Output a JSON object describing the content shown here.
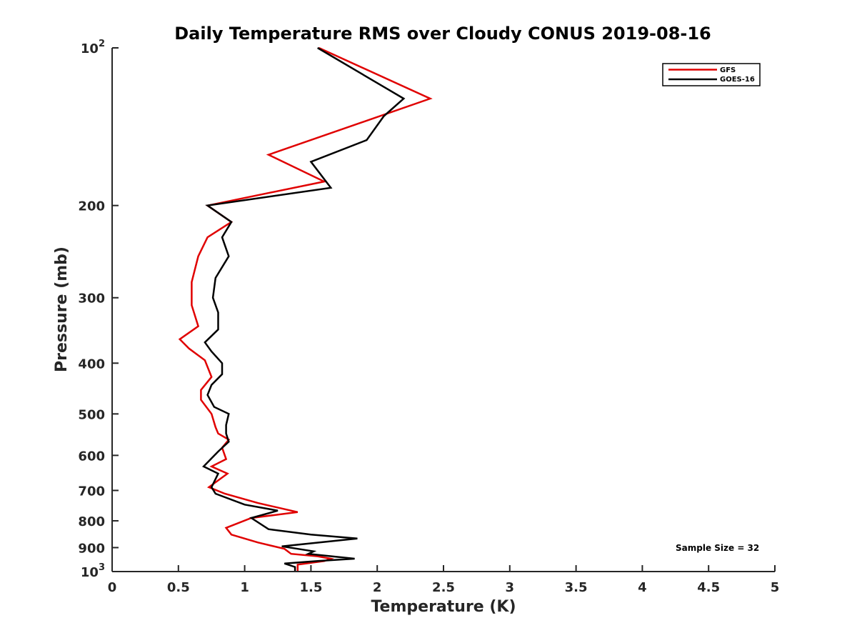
{
  "chart_data": {
    "type": "line",
    "title": "Daily Temperature RMS over Cloudy CONUS 2019-08-16",
    "xlabel": "Temperature (K)",
    "ylabel": "Pressure (mb)",
    "xlim": [
      0,
      5
    ],
    "ylim": [
      100,
      1000
    ],
    "yscale": "log",
    "y_reversed": true,
    "xticks": [
      "0",
      "0.5",
      "1",
      "1.5",
      "2",
      "2.5",
      "3",
      "3.5",
      "4",
      "4.5",
      "5"
    ],
    "yticks": [
      {
        "value": 100,
        "base": "10",
        "exp": "2"
      },
      {
        "value": 200,
        "label": "200"
      },
      {
        "value": 300,
        "label": "300"
      },
      {
        "value": 400,
        "label": "400"
      },
      {
        "value": 500,
        "label": "500"
      },
      {
        "value": 600,
        "label": "600"
      },
      {
        "value": 700,
        "label": "700"
      },
      {
        "value": 800,
        "label": "800"
      },
      {
        "value": 900,
        "label": "900"
      },
      {
        "value": 1000,
        "base": "10",
        "exp": "3"
      }
    ],
    "legend_position": "top-right",
    "annotation": "Sample Size = 32",
    "grid": false,
    "series": [
      {
        "name": "GFS",
        "color": "#e00000",
        "points": [
          [
            1.56,
            100
          ],
          [
            2.4,
            125
          ],
          [
            1.18,
            160
          ],
          [
            1.6,
            180
          ],
          [
            0.72,
            200
          ],
          [
            0.9,
            215
          ],
          [
            0.72,
            230
          ],
          [
            0.65,
            250
          ],
          [
            0.6,
            280
          ],
          [
            0.6,
            310
          ],
          [
            0.65,
            340
          ],
          [
            0.51,
            360
          ],
          [
            0.58,
            375
          ],
          [
            0.7,
            395
          ],
          [
            0.75,
            425
          ],
          [
            0.67,
            450
          ],
          [
            0.67,
            470
          ],
          [
            0.75,
            500
          ],
          [
            0.78,
            530
          ],
          [
            0.8,
            545
          ],
          [
            0.88,
            560
          ],
          [
            0.83,
            580
          ],
          [
            0.86,
            610
          ],
          [
            0.75,
            630
          ],
          [
            0.87,
            650
          ],
          [
            0.73,
            690
          ],
          [
            0.85,
            710
          ],
          [
            1.1,
            740
          ],
          [
            1.4,
            770
          ],
          [
            1.05,
            790
          ],
          [
            0.86,
            825
          ],
          [
            0.9,
            850
          ],
          [
            1.1,
            880
          ],
          [
            1.3,
            905
          ],
          [
            1.35,
            925
          ],
          [
            1.55,
            935
          ],
          [
            1.65,
            945
          ],
          [
            1.6,
            955
          ],
          [
            1.4,
            970
          ],
          [
            1.4,
            1000
          ]
        ]
      },
      {
        "name": "GOES-16",
        "color": "#000000",
        "points": [
          [
            1.55,
            100
          ],
          [
            2.2,
            125
          ],
          [
            2.05,
            135
          ],
          [
            1.92,
            150
          ],
          [
            1.5,
            165
          ],
          [
            1.65,
            185
          ],
          [
            0.72,
            200
          ],
          [
            0.9,
            215
          ],
          [
            0.83,
            230
          ],
          [
            0.88,
            250
          ],
          [
            0.78,
            275
          ],
          [
            0.76,
            300
          ],
          [
            0.8,
            320
          ],
          [
            0.8,
            345
          ],
          [
            0.7,
            365
          ],
          [
            0.75,
            380
          ],
          [
            0.83,
            400
          ],
          [
            0.83,
            420
          ],
          [
            0.75,
            440
          ],
          [
            0.72,
            460
          ],
          [
            0.77,
            485
          ],
          [
            0.88,
            500
          ],
          [
            0.86,
            525
          ],
          [
            0.86,
            545
          ],
          [
            0.88,
            565
          ],
          [
            0.8,
            590
          ],
          [
            0.69,
            630
          ],
          [
            0.8,
            650
          ],
          [
            0.75,
            690
          ],
          [
            0.78,
            710
          ],
          [
            1.0,
            745
          ],
          [
            1.25,
            765
          ],
          [
            1.05,
            790
          ],
          [
            1.18,
            830
          ],
          [
            1.5,
            850
          ],
          [
            1.85,
            865
          ],
          [
            1.28,
            895
          ],
          [
            1.52,
            915
          ],
          [
            1.48,
            925
          ],
          [
            1.83,
            945
          ],
          [
            1.55,
            955
          ],
          [
            1.3,
            965
          ],
          [
            1.38,
            980
          ],
          [
            1.38,
            1000
          ]
        ]
      }
    ]
  }
}
